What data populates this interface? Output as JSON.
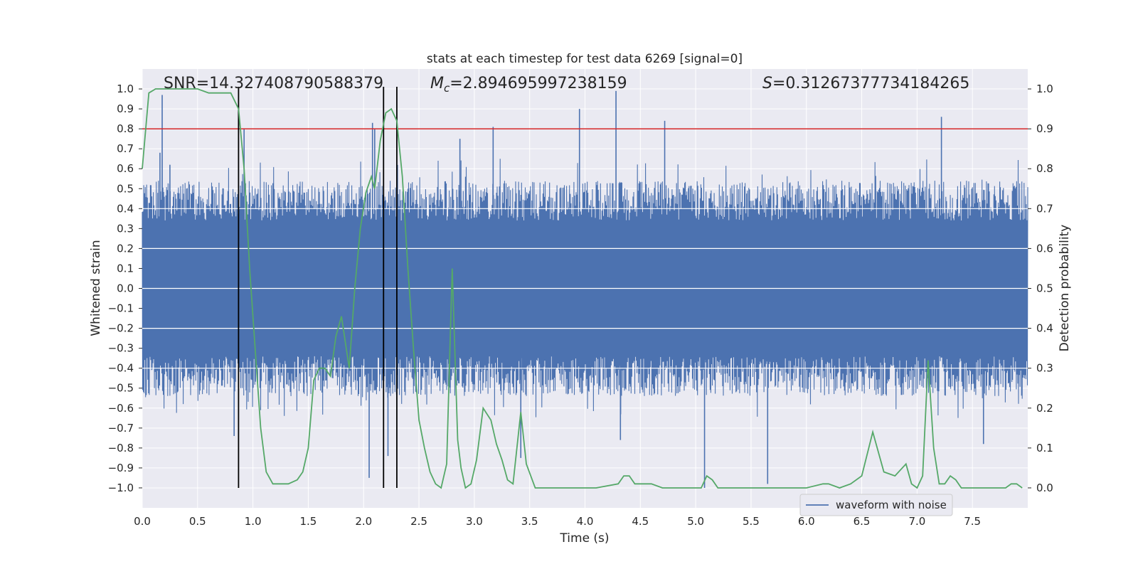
{
  "chart_data": {
    "type": "line",
    "title": "stats at each timestep for test data 6269 [signal=0]",
    "xlabel": "Time (s)",
    "ylabel_left": "Whitened strain",
    "ylabel_right": "Detection probability",
    "xlim": [
      0.0,
      8.0
    ],
    "ylim_left": [
      -1.1,
      1.1
    ],
    "ylim_right": [
      -0.05,
      1.05
    ],
    "x_ticks": [
      "0.0",
      "0.5",
      "1.0",
      "1.5",
      "2.0",
      "2.5",
      "3.0",
      "3.5",
      "4.0",
      "4.5",
      "5.0",
      "5.5",
      "6.0",
      "6.5",
      "7.0",
      "7.5"
    ],
    "y_left_ticks": [
      "1.0",
      "0.9",
      "0.8",
      "0.7",
      "0.6",
      "0.5",
      "0.4",
      "0.3",
      "0.2",
      "0.1",
      "0.0",
      "-0.1",
      "-0.2",
      "-0.3",
      "-0.4",
      "-0.5",
      "-0.6",
      "-0.7",
      "-0.8",
      "-0.9",
      "-1.0"
    ],
    "y_right_ticks": [
      "1.0",
      "0.9",
      "0.8",
      "0.7",
      "0.6",
      "0.5",
      "0.4",
      "0.3",
      "0.2",
      "0.1",
      "0.0"
    ],
    "grid": true,
    "legend": {
      "position": "lower-right",
      "entries": [
        "waveform with noise"
      ]
    },
    "annotations": {
      "snr": "SNR=14.327408790588379",
      "mc_symbol": "M",
      "mc_subscript": "c",
      "mc_value": "=2.894695997238159",
      "s_symbol": "S",
      "s_value": "=0.31267377734184265"
    },
    "threshold_line": {
      "y_right": 0.9,
      "color": "#d62728"
    },
    "vertical_lines_x": [
      0.87,
      2.18,
      2.3
    ],
    "waveform": {
      "name": "waveform with noise",
      "color": "#4c72b0",
      "typical_envelope": 0.4,
      "peaks": [
        {
          "x": 0.18,
          "y": 0.97
        },
        {
          "x": 0.25,
          "y": 0.62
        },
        {
          "x": 0.16,
          "y": 0.68
        },
        {
          "x": 0.83,
          "y": -0.74
        },
        {
          "x": 0.92,
          "y": 0.8
        },
        {
          "x": 2.08,
          "y": 0.83
        },
        {
          "x": 2.1,
          "y": 0.8
        },
        {
          "x": 2.05,
          "y": -0.95
        },
        {
          "x": 2.22,
          "y": -0.84
        },
        {
          "x": 2.87,
          "y": 0.75
        },
        {
          "x": 3.17,
          "y": 0.81
        },
        {
          "x": 3.95,
          "y": 0.9
        },
        {
          "x": 4.28,
          "y": 0.99
        },
        {
          "x": 4.72,
          "y": 0.84
        },
        {
          "x": 5.08,
          "y": -1.0
        },
        {
          "x": 5.65,
          "y": -0.98
        },
        {
          "x": 7.22,
          "y": 0.86
        },
        {
          "x": 7.6,
          "y": -0.78
        },
        {
          "x": 4.32,
          "y": -0.76
        },
        {
          "x": 3.42,
          "y": -0.85
        }
      ]
    },
    "probability": {
      "color": "#55a868",
      "x": [
        0.0,
        0.06,
        0.12,
        0.2,
        0.3,
        0.4,
        0.5,
        0.6,
        0.7,
        0.8,
        0.87,
        0.92,
        0.97,
        1.02,
        1.07,
        1.12,
        1.18,
        1.25,
        1.32,
        1.4,
        1.45,
        1.5,
        1.55,
        1.6,
        1.65,
        1.7,
        1.75,
        1.8,
        1.87,
        1.92,
        1.97,
        2.02,
        2.07,
        2.1,
        2.15,
        2.2,
        2.25,
        2.3,
        2.35,
        2.4,
        2.45,
        2.5,
        2.55,
        2.6,
        2.65,
        2.7,
        2.75,
        2.8,
        2.85,
        2.88,
        2.92,
        2.97,
        3.02,
        3.08,
        3.15,
        3.2,
        3.25,
        3.3,
        3.35,
        3.42,
        3.47,
        3.55,
        3.7,
        3.9,
        4.1,
        4.3,
        4.35,
        4.4,
        4.45,
        4.5,
        4.6,
        4.7,
        4.8,
        4.9,
        5.0,
        5.05,
        5.1,
        5.15,
        5.2,
        5.3,
        5.4,
        5.5,
        5.6,
        5.8,
        6.0,
        6.15,
        6.2,
        6.3,
        6.4,
        6.5,
        6.6,
        6.7,
        6.8,
        6.9,
        6.95,
        7.0,
        7.05,
        7.1,
        7.15,
        7.2,
        7.25,
        7.3,
        7.35,
        7.4,
        7.5,
        7.6,
        7.7,
        7.8,
        7.85,
        7.9,
        7.95
      ],
      "y": [
        0.8,
        0.99,
        1.0,
        1.0,
        1.0,
        1.0,
        1.0,
        0.99,
        0.99,
        0.99,
        0.95,
        0.8,
        0.55,
        0.35,
        0.15,
        0.04,
        0.01,
        0.01,
        0.01,
        0.02,
        0.04,
        0.1,
        0.27,
        0.3,
        0.3,
        0.28,
        0.38,
        0.43,
        0.3,
        0.5,
        0.65,
        0.74,
        0.78,
        0.75,
        0.87,
        0.94,
        0.95,
        0.92,
        0.78,
        0.55,
        0.35,
        0.17,
        0.1,
        0.04,
        0.01,
        0.0,
        0.06,
        0.55,
        0.12,
        0.05,
        0.0,
        0.01,
        0.07,
        0.2,
        0.17,
        0.11,
        0.07,
        0.02,
        0.01,
        0.19,
        0.06,
        0.0,
        0.0,
        0.0,
        0.0,
        0.01,
        0.03,
        0.03,
        0.01,
        0.01,
        0.01,
        0.0,
        0.0,
        0.0,
        0.0,
        0.0,
        0.03,
        0.02,
        0.0,
        0.0,
        0.0,
        0.0,
        0.0,
        0.0,
        0.0,
        0.01,
        0.01,
        0.0,
        0.01,
        0.03,
        0.14,
        0.04,
        0.03,
        0.06,
        0.01,
        0.0,
        0.03,
        0.32,
        0.1,
        0.01,
        0.01,
        0.03,
        0.02,
        0.0,
        0.0,
        0.0,
        0.0,
        0.0,
        0.01,
        0.01,
        0.0
      ]
    }
  }
}
